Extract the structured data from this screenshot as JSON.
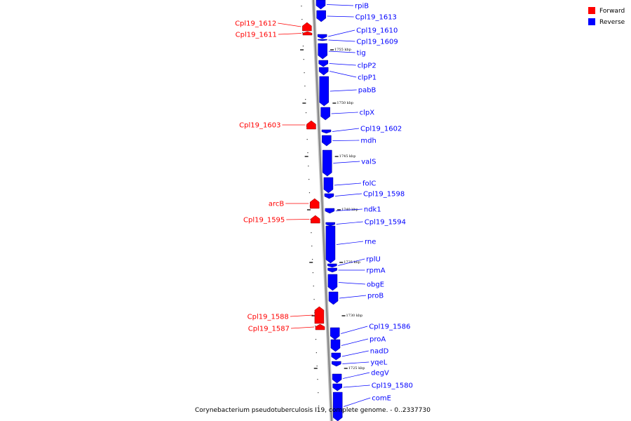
{
  "caption": "Corynebacterium pseudotuberculosis I19, complete genome. - 0..2337730",
  "legend": [
    {
      "label": "Forward",
      "color": "#ff0000",
      "name": "legend-forward"
    },
    {
      "label": "Reverse",
      "color": "#0000ff",
      "name": "legend-reverse"
    }
  ],
  "colors": {
    "forward": "#ff0000",
    "reverse": "#0000ff",
    "backbone": "#888888"
  },
  "ticks": [
    {
      "label": "1755 kbp"
    },
    {
      "label": "1750 kbp"
    },
    {
      "label": "1745 kbp"
    },
    {
      "label": "1740 kbp"
    },
    {
      "label": "1735 kbp"
    },
    {
      "label": "1730 kbp"
    },
    {
      "label": "1725 kbp"
    }
  ],
  "forward_genes": [
    {
      "label": "Cpl19_1612"
    },
    {
      "label": "Cpl19_1611"
    },
    {
      "label": "Cpl19_1603"
    },
    {
      "label": "arcB"
    },
    {
      "label": "Cpl19_1595"
    },
    {
      "label": "Cpl19_1588"
    },
    {
      "label": "Cpl19_1587"
    }
  ],
  "reverse_genes": [
    {
      "label": "rpiB"
    },
    {
      "label": "Cpl19_1613"
    },
    {
      "label": "Cpl19_1610"
    },
    {
      "label": "Cpl19_1609"
    },
    {
      "label": "tig"
    },
    {
      "label": "clpP2"
    },
    {
      "label": "clpP1"
    },
    {
      "label": "pabB"
    },
    {
      "label": "clpX"
    },
    {
      "label": "Cpl19_1602"
    },
    {
      "label": "mdh"
    },
    {
      "label": "valS"
    },
    {
      "label": "folC"
    },
    {
      "label": "Cpl19_1598"
    },
    {
      "label": "ndk1"
    },
    {
      "label": "Cpl19_1594"
    },
    {
      "label": "rne"
    },
    {
      "label": "rplU"
    },
    {
      "label": "rpmA"
    },
    {
      "label": "obgE"
    },
    {
      "label": "proB"
    },
    {
      "label": "Cpl19_1586"
    },
    {
      "label": "proA"
    },
    {
      "label": "nadD"
    },
    {
      "label": "yqeL"
    },
    {
      "label": "degV"
    },
    {
      "label": "Cpl19_1580"
    },
    {
      "label": "comE"
    }
  ]
}
